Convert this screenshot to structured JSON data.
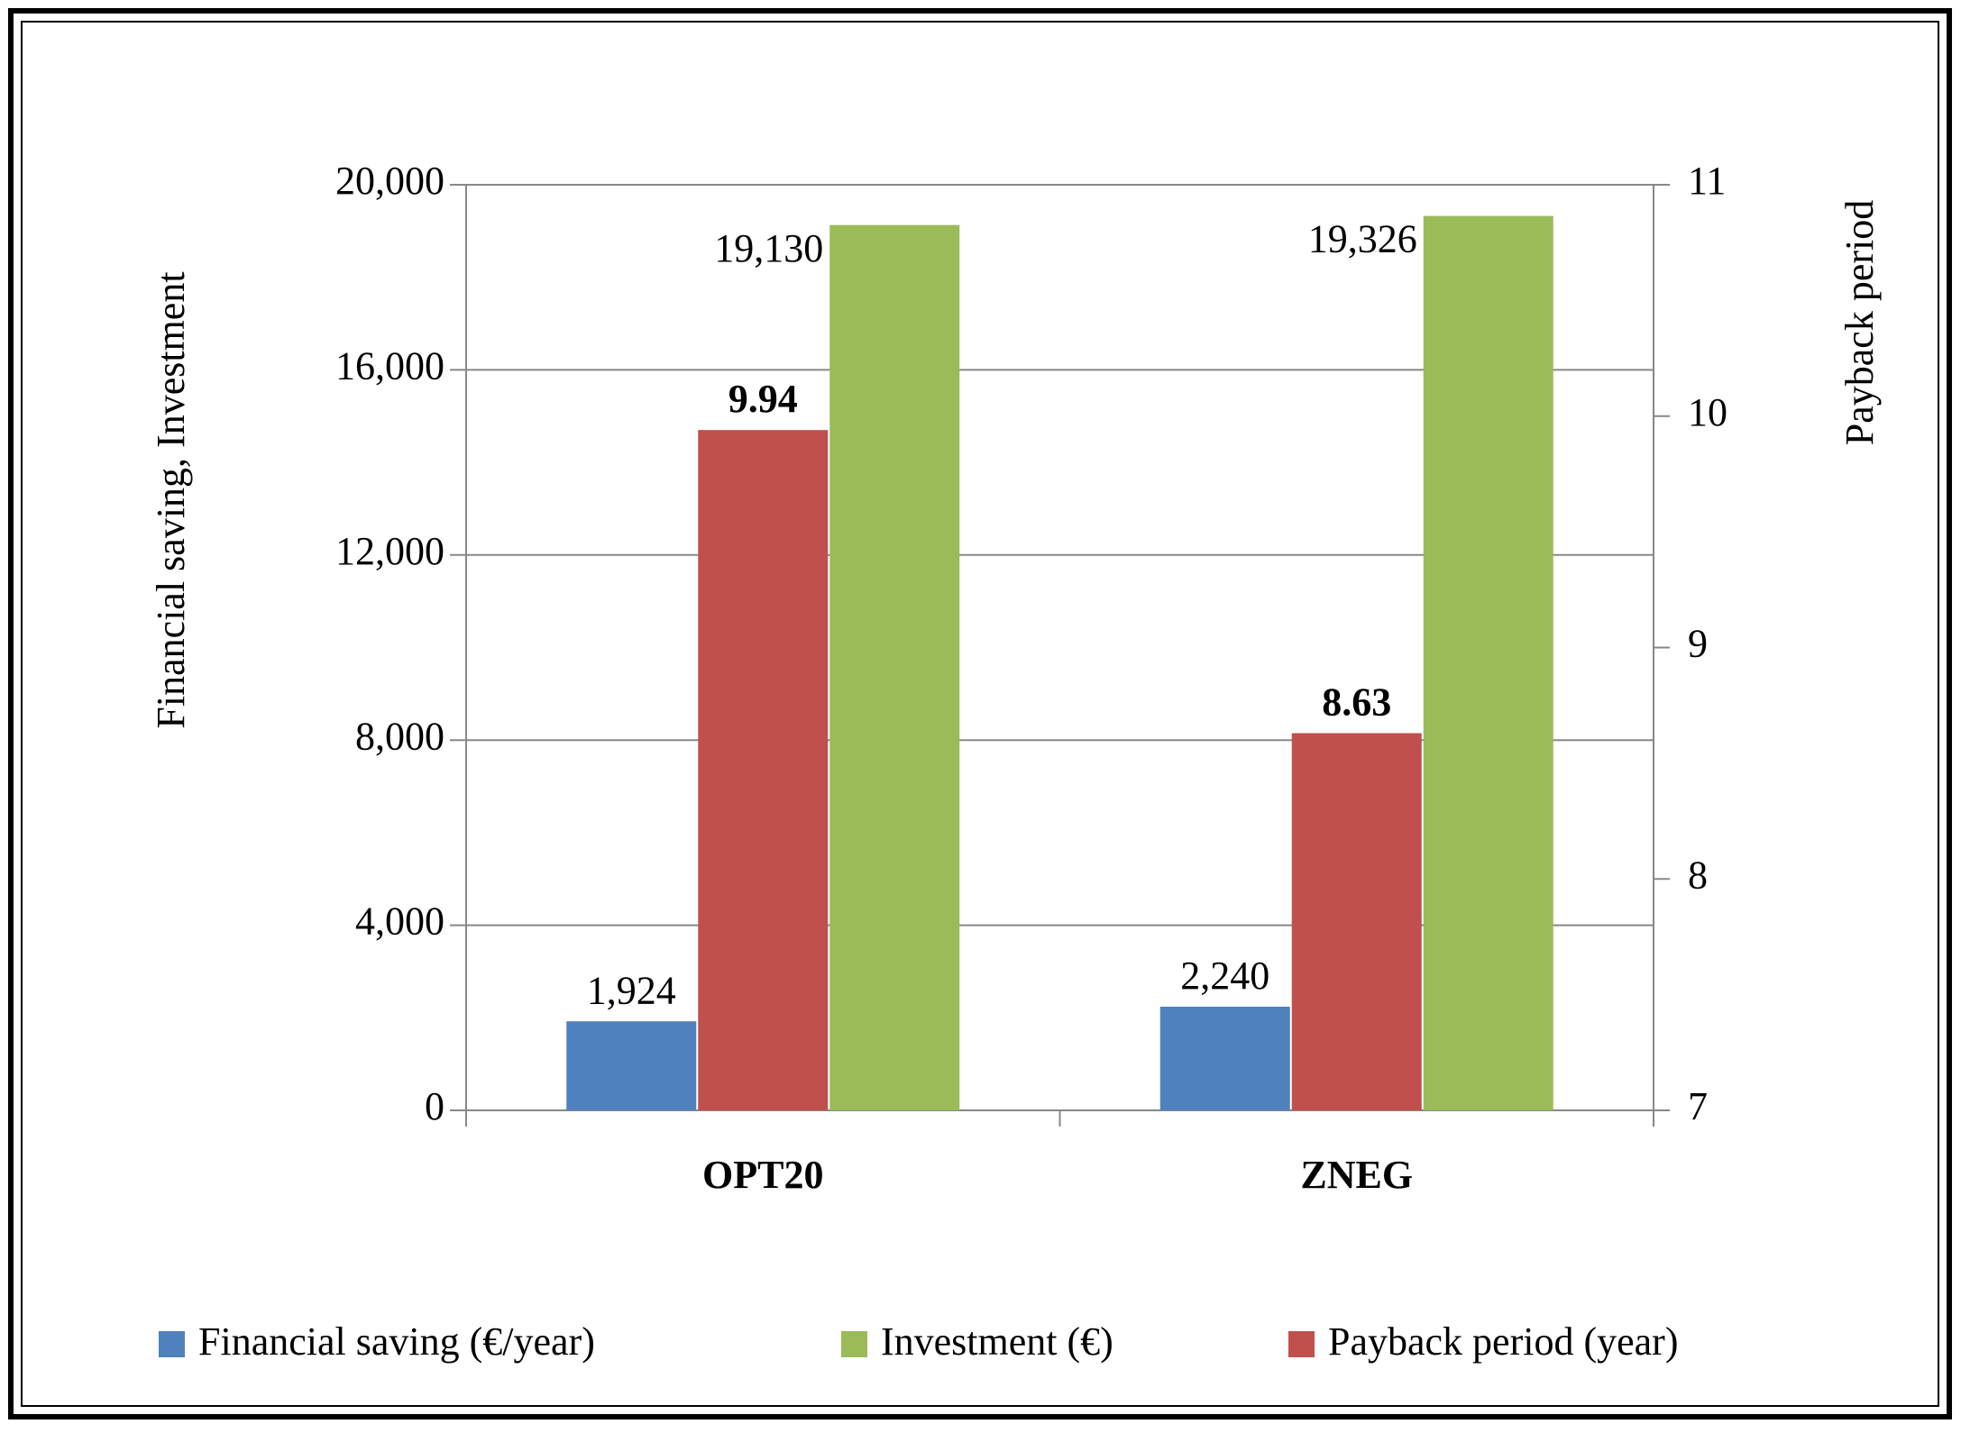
{
  "chart_data": {
    "type": "bar",
    "categories": [
      "OPT20",
      "ZNEG"
    ],
    "series": [
      {
        "name": "Financial saving (€/year)",
        "color": "#4f81bd",
        "values": [
          1924,
          2240
        ],
        "value_labels": [
          "1,924",
          "2,240"
        ]
      },
      {
        "name": "Investment (€)",
        "color": "#9bbb59",
        "values": [
          19130,
          19326
        ],
        "value_labels": [
          "19,130",
          "19,326"
        ]
      },
      {
        "name": "Payback period (year)",
        "color": "#c0504d",
        "values": [
          9.94,
          8.63
        ],
        "axis": "y2"
      }
    ],
    "ylabel": "Financial saving, Investment",
    "y2label": "Payback period",
    "ylim": [
      0,
      20000
    ],
    "yticks": [
      0,
      {
        "value": 4000,
        "label": "4,000"
      },
      {
        "value": 8000,
        "label": "8,000"
      },
      {
        "value": 12000,
        "label": "12,000"
      },
      {
        "value": 16000,
        "label": "16,000"
      },
      {
        "value": 20000,
        "label": "20,000"
      }
    ],
    "y2lim": [
      7,
      11
    ],
    "y2ticks": [
      7,
      8,
      9,
      10,
      11
    ],
    "grid": true,
    "legend": "bottom"
  }
}
